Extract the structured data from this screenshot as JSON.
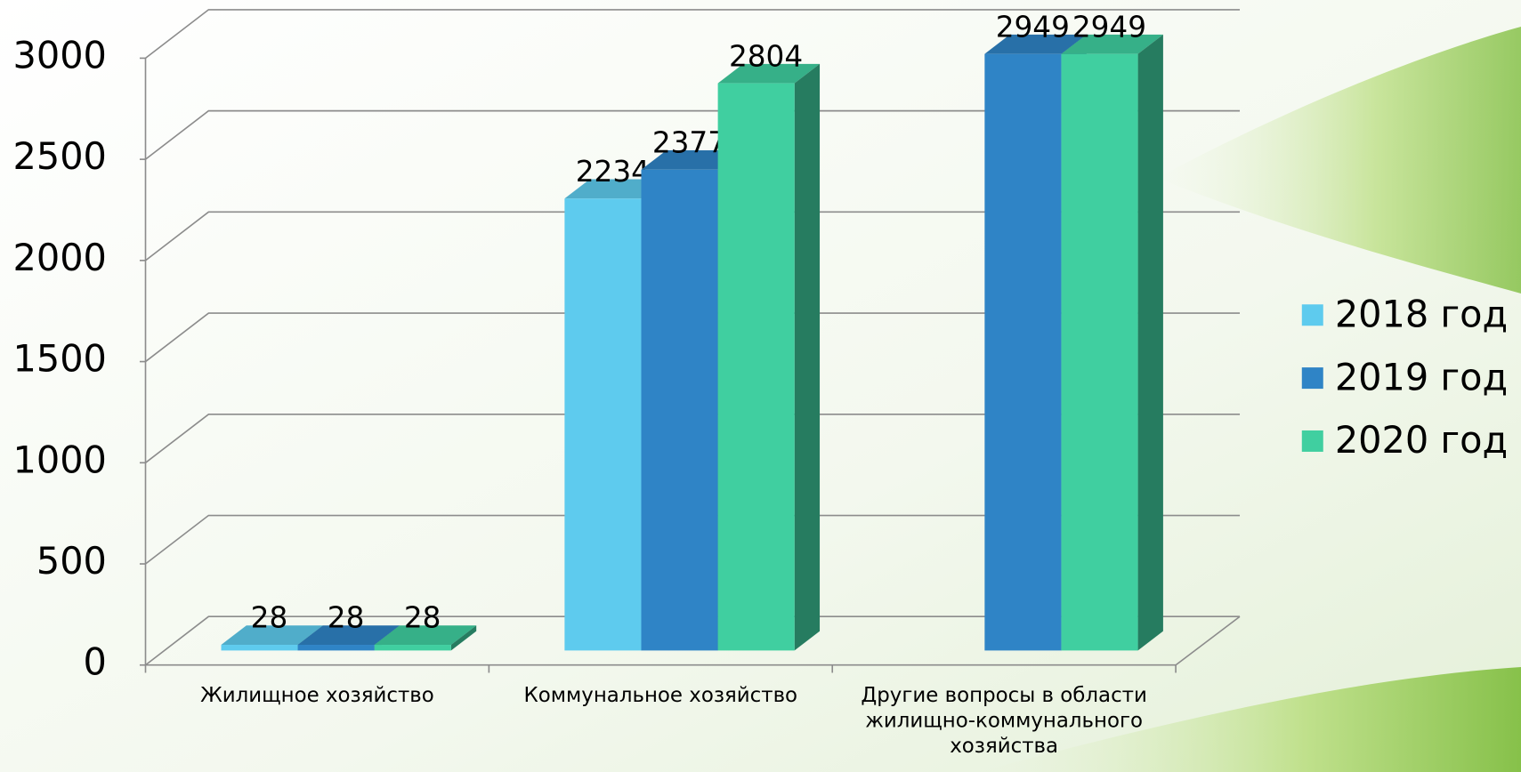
{
  "chart_data": {
    "type": "bar3d",
    "categories": [
      "Жилищное хозяйство",
      "Коммунальное хозяйство",
      "Другие вопросы в области жилищно-коммунального хозяйства"
    ],
    "series": [
      {
        "name": "2018 год",
        "color": "#5ecbee",
        "values": [
          28,
          2234,
          null
        ]
      },
      {
        "name": "2019 год",
        "color": "#2f84c6",
        "values": [
          28,
          2377,
          2949
        ]
      },
      {
        "name": "2020 год",
        "color": "#40cfa0",
        "values": [
          28,
          2804,
          2949
        ]
      }
    ],
    "ylim": [
      0,
      3000
    ],
    "yticks": [
      0,
      500,
      1000,
      1500,
      2000,
      2500,
      3000
    ],
    "grid": true,
    "legend": "right"
  }
}
